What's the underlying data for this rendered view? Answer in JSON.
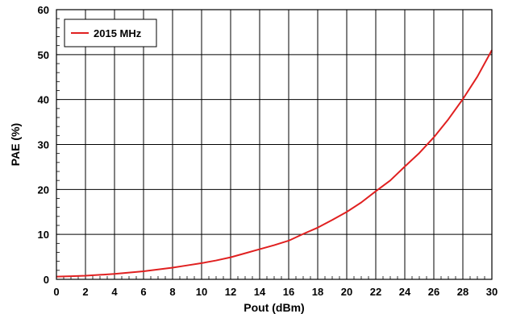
{
  "chart_data": {
    "type": "line",
    "xlabel": "Pout (dBm)",
    "ylabel": "PAE (%)",
    "xlim": [
      0,
      30
    ],
    "ylim": [
      0,
      60
    ],
    "xticks": [
      "0",
      "2",
      "4",
      "6",
      "8",
      "10",
      "12",
      "14",
      "16",
      "18",
      "20",
      "22",
      "24",
      "26",
      "28",
      "30"
    ],
    "yticks": [
      "0",
      "10",
      "20",
      "30",
      "40",
      "50",
      "60"
    ],
    "grid": true,
    "legend_position": "top-left",
    "series": [
      {
        "name": "2015 MHz",
        "color": "#e02020",
        "x": [
          0,
          1,
          2,
          3,
          4,
          5,
          6,
          7,
          8,
          9,
          10,
          11,
          12,
          13,
          14,
          15,
          16,
          17,
          18,
          19,
          20,
          21,
          22,
          23,
          24,
          25,
          26,
          27,
          28,
          29,
          30
        ],
        "y": [
          0.6,
          0.7,
          0.8,
          1.0,
          1.2,
          1.5,
          1.8,
          2.2,
          2.6,
          3.1,
          3.6,
          4.2,
          4.9,
          5.8,
          6.7,
          7.6,
          8.6,
          10.1,
          11.5,
          13.2,
          15.0,
          17.1,
          19.6,
          22.0,
          25.1,
          28.1,
          31.6,
          35.6,
          40.1,
          45.1,
          51.0
        ]
      }
    ]
  }
}
